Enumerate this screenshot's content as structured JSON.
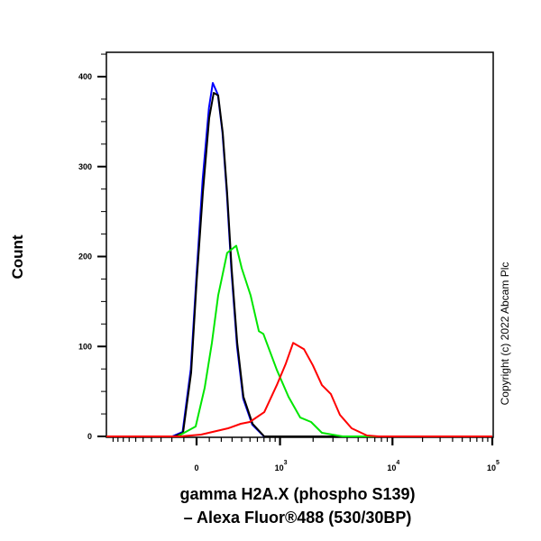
{
  "chart_data": {
    "type": "line",
    "title": "",
    "xlabel_line1": "gamma H2A.X (phospho S139)",
    "xlabel_line2": "– Alexa Fluor®488 (530/30BP)",
    "ylabel": "Count",
    "x_scale": "biexponential",
    "xlim": [
      -1150,
      100000
    ],
    "ylim": [
      0,
      430
    ],
    "grid": false,
    "legend": "none",
    "x_tick_labels": [
      {
        "value": 0,
        "base": "0",
        "exp": ""
      },
      {
        "value": 1000,
        "base": "10",
        "exp": "3"
      },
      {
        "value": 10000,
        "base": "10",
        "exp": "4"
      },
      {
        "value": 100000,
        "base": "10",
        "exp": "5"
      }
    ],
    "y_ticks": [
      0,
      100,
      200,
      300,
      400
    ],
    "series": [
      {
        "color": "#0000ff",
        "points": [
          [
            -197,
            0
          ],
          [
            -110,
            5
          ],
          [
            -45,
            75
          ],
          [
            0,
            180
          ],
          [
            47,
            285
          ],
          [
            97,
            365
          ],
          [
            128,
            393
          ],
          [
            170,
            380
          ],
          [
            210,
            338
          ],
          [
            250,
            270
          ],
          [
            293,
            185
          ],
          [
            350,
            100
          ],
          [
            418,
            42
          ],
          [
            530,
            13
          ],
          [
            700,
            0
          ]
        ]
      },
      {
        "color": "#000000",
        "points": [
          [
            -181,
            0
          ],
          [
            -106,
            4
          ],
          [
            -42,
            71
          ],
          [
            0,
            171
          ],
          [
            49,
            271
          ],
          [
            99,
            354
          ],
          [
            136,
            382
          ],
          [
            173,
            379
          ],
          [
            213,
            337
          ],
          [
            253,
            271
          ],
          [
            296,
            187
          ],
          [
            352,
            104
          ],
          [
            421,
            44
          ],
          [
            533,
            14
          ],
          [
            705,
            0
          ]
        ]
      },
      {
        "color": "#00e600",
        "points": [
          [
            -151,
            0
          ],
          [
            -7,
            11
          ],
          [
            63,
            54
          ],
          [
            121,
            104
          ],
          [
            173,
            157
          ],
          [
            197,
            171
          ],
          [
            253,
            204
          ],
          [
            342,
            212
          ],
          [
            401,
            187
          ],
          [
            507,
            157
          ],
          [
            621,
            117
          ],
          [
            690,
            114
          ],
          [
            932,
            74
          ],
          [
            1200,
            44
          ],
          [
            1533,
            21
          ],
          [
            1917,
            16
          ],
          [
            2395,
            4
          ],
          [
            3650,
            0
          ]
        ]
      },
      {
        "color": "#ff0000",
        "points": [
          [
            -128,
            0
          ],
          [
            35,
            2
          ],
          [
            262,
            9
          ],
          [
            390,
            14
          ],
          [
            497,
            16
          ],
          [
            705,
            27
          ],
          [
            932,
            57
          ],
          [
            1133,
            81
          ],
          [
            1321,
            104
          ],
          [
            1656,
            97
          ],
          [
            1990,
            79
          ],
          [
            2395,
            57
          ],
          [
            2876,
            47
          ],
          [
            3457,
            24
          ],
          [
            4381,
            9
          ],
          [
            5975,
            1
          ],
          [
            7573,
            0
          ]
        ]
      }
    ]
  },
  "copyright": "Copyright (c) 2022 Abcam Plc"
}
